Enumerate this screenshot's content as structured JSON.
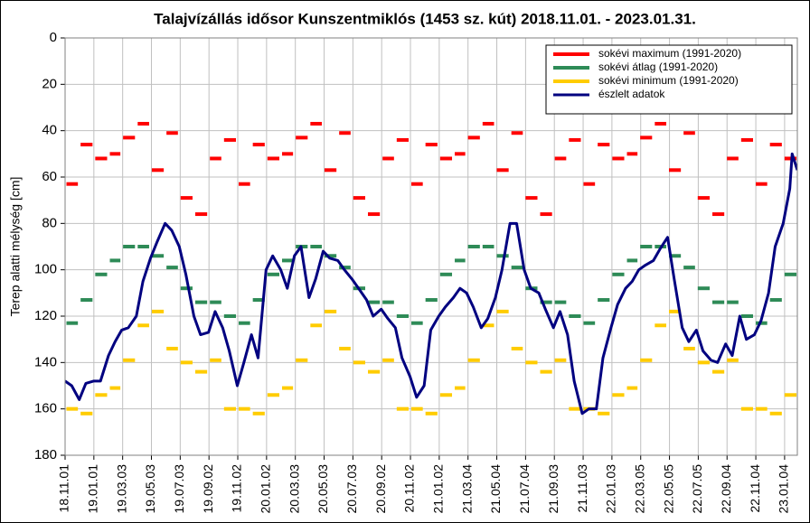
{
  "chart_data": {
    "type": "line",
    "title": "Talajvízállás idősor Kunszentmiklós (1453 sz. kút) 2018.11.01. - 2023.01.31.",
    "ylabel": "Terep alatti mélység [cm]",
    "xlim": [
      "2018-11-01",
      "2023-01-31"
    ],
    "xticks": [
      {
        "value": "2018-11-01",
        "label": "18.11.01"
      },
      {
        "value": "2019-01-01",
        "label": "19.01.01"
      },
      {
        "value": "2019-03-03",
        "label": "19.03.03"
      },
      {
        "value": "2019-05-03",
        "label": "19.05.03"
      },
      {
        "value": "2019-07-03",
        "label": "19.07.03"
      },
      {
        "value": "2019-09-02",
        "label": "19.09.02"
      },
      {
        "value": "2019-11-02",
        "label": "19.11.02"
      },
      {
        "value": "2020-01-02",
        "label": "20.01.02"
      },
      {
        "value": "2020-03-03",
        "label": "20.03.03"
      },
      {
        "value": "2020-05-03",
        "label": "20.05.03"
      },
      {
        "value": "2020-07-03",
        "label": "20.07.03"
      },
      {
        "value": "2020-09-02",
        "label": "20.09.02"
      },
      {
        "value": "2020-11-02",
        "label": "20.11.02"
      },
      {
        "value": "2021-01-02",
        "label": "21.01.02"
      },
      {
        "value": "2021-03-04",
        "label": "21.03.04"
      },
      {
        "value": "2021-05-04",
        "label": "21.05.04"
      },
      {
        "value": "2021-07-04",
        "label": "21.07.04"
      },
      {
        "value": "2021-09-03",
        "label": "21.09.03"
      },
      {
        "value": "2021-11-03",
        "label": "21.11.03"
      },
      {
        "value": "2022-01-03",
        "label": "22.01.03"
      },
      {
        "value": "2022-03-05",
        "label": "22.03.05"
      },
      {
        "value": "2022-05-05",
        "label": "22.05.05"
      },
      {
        "value": "2022-07-05",
        "label": "22.07.05"
      },
      {
        "value": "2022-09-04",
        "label": "22.09.04"
      },
      {
        "value": "2022-11-04",
        "label": "22.11.04"
      },
      {
        "value": "2023-01-04",
        "label": "23.01.04"
      }
    ],
    "ylim": [
      0,
      180
    ],
    "yticks": [
      0,
      20,
      40,
      60,
      80,
      100,
      120,
      140,
      160,
      180
    ],
    "y_inverted": true,
    "grid": true,
    "legend": "upper right",
    "series": [
      {
        "name": "sokévi maximum (1991-2020)",
        "color": "#ff0000",
        "x": [
          "2018-11",
          "2018-12",
          "2019-01",
          "2019-02",
          "2019-03",
          "2019-04",
          "2019-05",
          "2019-06",
          "2019-07",
          "2019-08",
          "2019-09",
          "2019-10",
          "2019-11",
          "2019-12",
          "2020-01",
          "2020-02",
          "2020-03",
          "2020-04",
          "2020-05",
          "2020-06",
          "2020-07",
          "2020-08",
          "2020-09",
          "2020-10",
          "2020-11",
          "2020-12",
          "2021-01",
          "2021-02",
          "2021-03",
          "2021-04",
          "2021-05",
          "2021-06",
          "2021-07",
          "2021-08",
          "2021-09",
          "2021-10",
          "2021-11",
          "2021-12",
          "2022-01",
          "2022-02",
          "2022-03",
          "2022-04",
          "2022-05",
          "2022-06",
          "2022-07",
          "2022-08",
          "2022-09",
          "2022-10",
          "2022-11",
          "2022-12",
          "2023-01"
        ],
        "values": [
          63,
          46,
          52,
          50,
          43,
          37,
          57,
          41,
          69,
          76,
          52,
          44,
          63,
          46,
          52,
          50,
          43,
          37,
          57,
          41,
          69,
          76,
          52,
          44,
          63,
          46,
          52,
          50,
          43,
          37,
          57,
          41,
          69,
          76,
          52,
          44,
          63,
          46,
          52,
          50,
          43,
          37,
          57,
          41,
          69,
          76,
          52,
          44,
          63,
          46,
          52
        ]
      },
      {
        "name": "sokévi átlag (1991-2020)",
        "color": "#2e8b57",
        "x": [
          "2018-11",
          "2018-12",
          "2019-01",
          "2019-02",
          "2019-03",
          "2019-04",
          "2019-05",
          "2019-06",
          "2019-07",
          "2019-08",
          "2019-09",
          "2019-10",
          "2019-11",
          "2019-12",
          "2020-01",
          "2020-02",
          "2020-03",
          "2020-04",
          "2020-05",
          "2020-06",
          "2020-07",
          "2020-08",
          "2020-09",
          "2020-10",
          "2020-11",
          "2020-12",
          "2021-01",
          "2021-02",
          "2021-03",
          "2021-04",
          "2021-05",
          "2021-06",
          "2021-07",
          "2021-08",
          "2021-09",
          "2021-10",
          "2021-11",
          "2021-12",
          "2022-01",
          "2022-02",
          "2022-03",
          "2022-04",
          "2022-05",
          "2022-06",
          "2022-07",
          "2022-08",
          "2022-09",
          "2022-10",
          "2022-11",
          "2022-12",
          "2023-01"
        ],
        "values": [
          123,
          113,
          102,
          96,
          90,
          90,
          94,
          99,
          108,
          114,
          114,
          120,
          123,
          113,
          102,
          96,
          90,
          90,
          94,
          99,
          108,
          114,
          114,
          120,
          123,
          113,
          102,
          96,
          90,
          90,
          94,
          99,
          108,
          114,
          114,
          120,
          123,
          113,
          102,
          96,
          90,
          90,
          94,
          99,
          108,
          114,
          114,
          120,
          123,
          113,
          102
        ]
      },
      {
        "name": "sokévi minimum (1991-2020)",
        "color": "#ffcc00",
        "x": [
          "2018-11",
          "2018-12",
          "2019-01",
          "2019-02",
          "2019-03",
          "2019-04",
          "2019-05",
          "2019-06",
          "2019-07",
          "2019-08",
          "2019-09",
          "2019-10",
          "2019-11",
          "2019-12",
          "2020-01",
          "2020-02",
          "2020-03",
          "2020-04",
          "2020-05",
          "2020-06",
          "2020-07",
          "2020-08",
          "2020-09",
          "2020-10",
          "2020-11",
          "2020-12",
          "2021-01",
          "2021-02",
          "2021-03",
          "2021-04",
          "2021-05",
          "2021-06",
          "2021-07",
          "2021-08",
          "2021-09",
          "2021-10",
          "2021-11",
          "2021-12",
          "2022-01",
          "2022-02",
          "2022-03",
          "2022-04",
          "2022-05",
          "2022-06",
          "2022-07",
          "2022-08",
          "2022-09",
          "2022-10",
          "2022-11",
          "2022-12",
          "2023-01"
        ],
        "values": [
          160,
          162,
          154,
          151,
          139,
          124,
          118,
          134,
          140,
          144,
          139,
          160,
          160,
          162,
          154,
          151,
          139,
          124,
          118,
          134,
          140,
          144,
          139,
          160,
          160,
          162,
          154,
          151,
          139,
          124,
          118,
          134,
          140,
          144,
          139,
          160,
          160,
          162,
          154,
          151,
          139,
          124,
          118,
          134,
          140,
          144,
          139,
          160,
          160,
          162,
          154
        ]
      },
      {
        "name": "észlelt adatok",
        "color": "#000080",
        "x": [
          "2018-11-01",
          "2018-11-15",
          "2018-12-01",
          "2018-12-15",
          "2019-01-01",
          "2019-01-15",
          "2019-02-01",
          "2019-02-15",
          "2019-03-01",
          "2019-03-15",
          "2019-04-01",
          "2019-04-15",
          "2019-05-01",
          "2019-05-15",
          "2019-06-01",
          "2019-06-15",
          "2019-07-01",
          "2019-07-15",
          "2019-08-01",
          "2019-08-15",
          "2019-09-01",
          "2019-09-15",
          "2019-10-01",
          "2019-10-15",
          "2019-11-01",
          "2019-11-15",
          "2019-12-01",
          "2019-12-15",
          "2020-01-01",
          "2020-01-15",
          "2020-02-01",
          "2020-02-15",
          "2020-03-01",
          "2020-03-15",
          "2020-04-01",
          "2020-04-15",
          "2020-05-01",
          "2020-05-15",
          "2020-06-01",
          "2020-06-15",
          "2020-07-01",
          "2020-07-15",
          "2020-08-01",
          "2020-08-15",
          "2020-09-01",
          "2020-09-15",
          "2020-10-01",
          "2020-10-15",
          "2020-11-01",
          "2020-11-15",
          "2020-12-01",
          "2020-12-15",
          "2021-01-01",
          "2021-01-15",
          "2021-02-01",
          "2021-02-15",
          "2021-03-01",
          "2021-03-15",
          "2021-04-01",
          "2021-04-15",
          "2021-05-01",
          "2021-05-15",
          "2021-06-01",
          "2021-06-15",
          "2021-07-01",
          "2021-07-15",
          "2021-08-01",
          "2021-08-15",
          "2021-09-01",
          "2021-09-15",
          "2021-10-01",
          "2021-10-15",
          "2021-11-01",
          "2021-11-15",
          "2021-12-01",
          "2021-12-15",
          "2022-01-01",
          "2022-01-15",
          "2022-02-01",
          "2022-02-15",
          "2022-03-01",
          "2022-03-15",
          "2022-04-01",
          "2022-04-15",
          "2022-05-01",
          "2022-05-15",
          "2022-06-01",
          "2022-06-15",
          "2022-07-01",
          "2022-07-15",
          "2022-08-01",
          "2022-08-15",
          "2022-09-01",
          "2022-09-15",
          "2022-10-01",
          "2022-10-15",
          "2022-11-01",
          "2022-11-15",
          "2022-12-01",
          "2022-12-15",
          "2023-01-01",
          "2023-01-15",
          "2023-01-20",
          "2023-01-31"
        ],
        "values": [
          148,
          150,
          156,
          149,
          148,
          148,
          137,
          131,
          126,
          125,
          120,
          105,
          95,
          88,
          80,
          83,
          90,
          102,
          120,
          128,
          127,
          118,
          125,
          135,
          150,
          140,
          128,
          138,
          100,
          94,
          100,
          108,
          94,
          90,
          112,
          104,
          92,
          95,
          96,
          100,
          104,
          108,
          113,
          120,
          117,
          121,
          125,
          138,
          146,
          155,
          150,
          126,
          120,
          116,
          112,
          108,
          110,
          116,
          125,
          121,
          112,
          100,
          80,
          80,
          100,
          108,
          110,
          117,
          125,
          118,
          128,
          148,
          162,
          160,
          160,
          138,
          125,
          115,
          108,
          105,
          100,
          98,
          96,
          91,
          86,
          104,
          125,
          131,
          126,
          135,
          139,
          140,
          132,
          137,
          120,
          130,
          128,
          122,
          110,
          90,
          80,
          65,
          50,
          57
        ]
      }
    ]
  }
}
